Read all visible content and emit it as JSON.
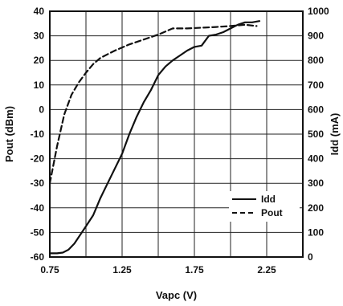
{
  "chart_data": {
    "type": "line",
    "xlabel": "Vapc (V)",
    "ylabel_left": "Pout (dBm)",
    "ylabel_right": "Idd (mA)",
    "xlim": [
      0.75,
      2.5
    ],
    "ylim_left": [
      -60,
      40
    ],
    "ylim_right": [
      0,
      1000
    ],
    "x_ticks": [
      "0.75",
      "1.25",
      "1.75",
      "2.25"
    ],
    "x_tick_values": [
      0.75,
      1.25,
      1.75,
      2.25
    ],
    "x_grid_values": [
      0.75,
      1.0,
      1.25,
      1.5,
      1.75,
      2.0,
      2.25,
      2.5
    ],
    "y_left_ticks": [
      "40",
      "30",
      "20",
      "10",
      "0",
      "-10",
      "-20",
      "-30",
      "-40",
      "-50",
      "-60"
    ],
    "y_left_tick_values": [
      40,
      30,
      20,
      10,
      0,
      -10,
      -20,
      -30,
      -40,
      -50,
      -60
    ],
    "y_right_ticks": [
      "1000",
      "900",
      "800",
      "700",
      "600",
      "500",
      "400",
      "300",
      "200",
      "100",
      "0"
    ],
    "y_right_tick_values": [
      1000,
      900,
      800,
      700,
      600,
      500,
      400,
      300,
      200,
      100,
      0
    ],
    "grid": true,
    "legend_position": "bottom-right",
    "series": [
      {
        "name": "Idd",
        "axis": "right",
        "style": "solid",
        "color": "#111111",
        "x": [
          0.75,
          0.8,
          0.84,
          0.88,
          0.92,
          0.96,
          1.0,
          1.05,
          1.1,
          1.15,
          1.2,
          1.25,
          1.3,
          1.35,
          1.4,
          1.45,
          1.5,
          1.55,
          1.6,
          1.65,
          1.7,
          1.75,
          1.8,
          1.85,
          1.9,
          1.95,
          2.0,
          2.05,
          2.1,
          2.15,
          2.2
        ],
        "y": [
          15,
          15,
          18,
          30,
          55,
          90,
          125,
          170,
          240,
          300,
          360,
          420,
          500,
          570,
          630,
          680,
          740,
          775,
          800,
          820,
          840,
          855,
          860,
          900,
          905,
          915,
          930,
          945,
          955,
          955,
          960
        ]
      },
      {
        "name": "Pout",
        "axis": "left",
        "style": "dashed",
        "color": "#111111",
        "x": [
          0.75,
          0.8,
          0.85,
          0.9,
          0.95,
          1.0,
          1.05,
          1.1,
          1.2,
          1.3,
          1.4,
          1.5,
          1.6,
          1.7,
          1.8,
          1.9,
          2.0,
          2.1,
          2.18
        ],
        "y": [
          -30,
          -15,
          -2,
          6,
          11,
          15,
          18.5,
          21,
          24,
          26.5,
          28.5,
          30.5,
          33,
          33,
          33.3,
          33.6,
          34,
          34.5,
          34
        ]
      }
    ]
  }
}
